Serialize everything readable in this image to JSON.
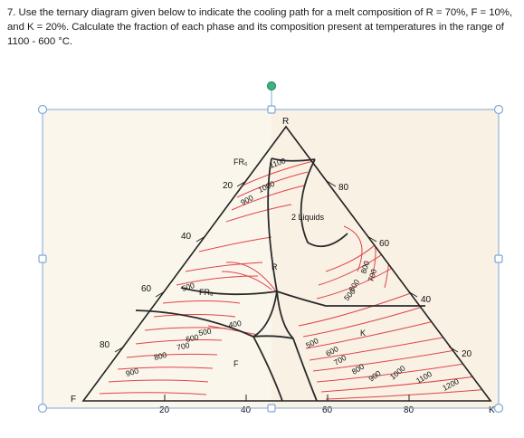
{
  "question": {
    "text": "7. Use the ternary diagram given below to indicate the cooling path for a melt composition of R = 70%, F = 10%, and K = 20%. Calculate the fraction of each phase and its composition present at temperatures in the range of 1100 - 600 °C."
  },
  "diagram": {
    "corners": {
      "top": "R",
      "left": "F",
      "right": "K"
    },
    "left_edge_ticks": [
      "20",
      "40",
      "60",
      "80"
    ],
    "right_edge_ticks": [
      "80",
      "60",
      "40",
      "20"
    ],
    "bottom_edge_ticks": [
      "20",
      "40",
      "60",
      "80"
    ],
    "phase_labels": {
      "fr6_top": "FR₆",
      "liquids": "2 Liquids",
      "r_center": "R",
      "fr6_mid": "FR₆",
      "f_field": "F",
      "k_field": "K"
    },
    "isotherm_labels": {
      "t1100_top": "1100",
      "t1000_top": "1000",
      "t900_top": "900",
      "t500_left": "500",
      "t400": "400",
      "t500_lower": "500",
      "t600_left": "600",
      "t700_left": "700",
      "t800_left": "800",
      "t900_left": "900",
      "t800_right": "800",
      "t700_right": "700",
      "t600_right": "600",
      "t500_right": "500",
      "t500_k": "500",
      "t600_k": "600",
      "t700_k": "700",
      "t800_k": "800",
      "t900_k": "900",
      "t1000_k": "1000",
      "t1100_k": "1100",
      "t1200_k": "1200"
    }
  },
  "colors": {
    "frame": "#7da7d9",
    "handle_fill": "#ffffff",
    "rotate_handle": "#3fb37f",
    "isotherm": "#e0444a",
    "boundary": "#2b2b2b",
    "paper": "#fbf6ec"
  }
}
